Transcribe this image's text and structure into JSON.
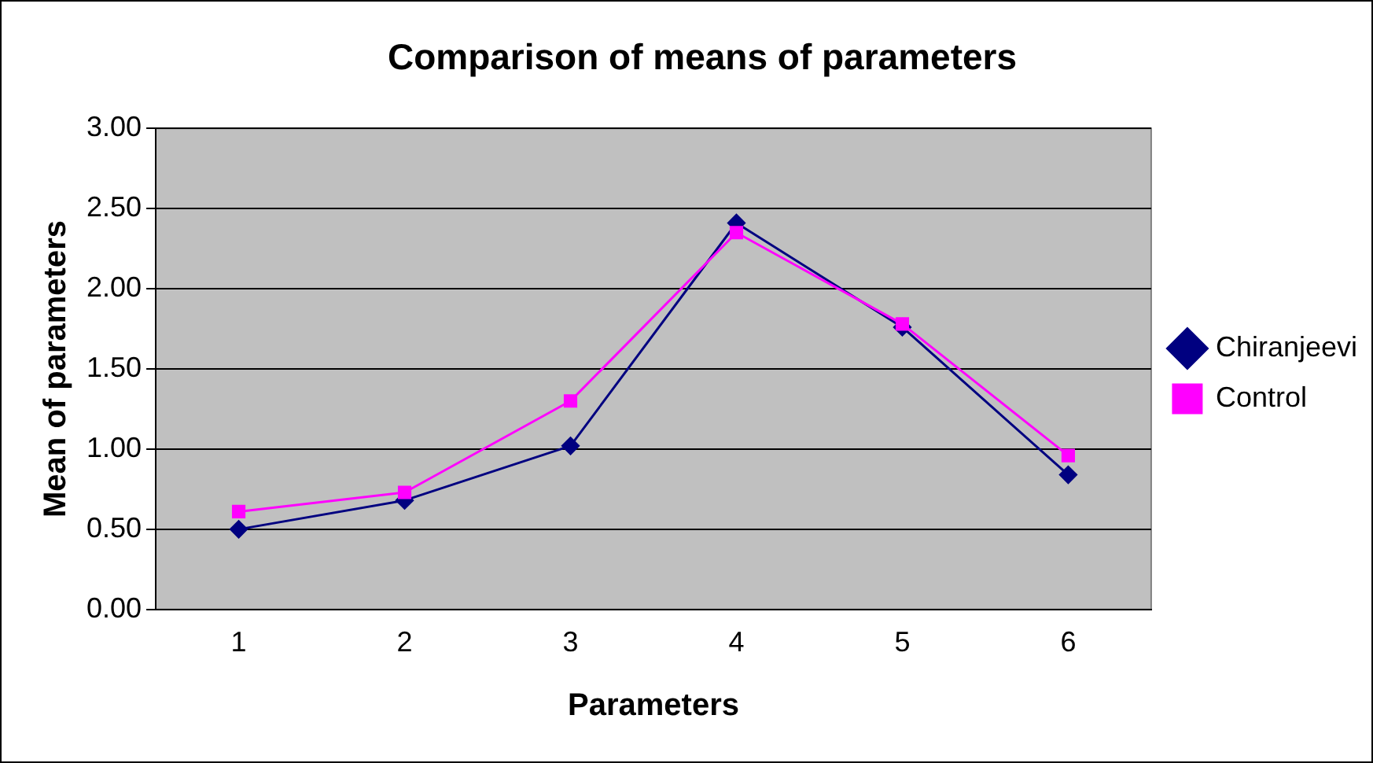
{
  "chart_data": {
    "type": "line",
    "title": "Comparison of means of parameters",
    "xlabel": "Parameters",
    "ylabel": "Mean of parameters",
    "categories": [
      "1",
      "2",
      "3",
      "4",
      "5",
      "6"
    ],
    "series": [
      {
        "name": "Chiranjeevi",
        "color": "#000080",
        "marker": "diamond",
        "values": [
          0.5,
          0.68,
          1.02,
          2.41,
          1.76,
          0.84
        ]
      },
      {
        "name": "Control",
        "color": "#ff00ff",
        "marker": "square",
        "values": [
          0.61,
          0.73,
          1.3,
          2.35,
          1.78,
          0.96
        ]
      }
    ],
    "ylim": [
      0,
      3
    ],
    "yticks": [
      {
        "value": 0,
        "label": "0.00"
      },
      {
        "value": 0.5,
        "label": "0.50"
      },
      {
        "value": 1,
        "label": "1.00"
      },
      {
        "value": 1.5,
        "label": "1.50"
      },
      {
        "value": 2,
        "label": "2.00"
      },
      {
        "value": 2.5,
        "label": "2.50"
      },
      {
        "value": 3,
        "label": "3.00"
      }
    ],
    "grid": "y",
    "legend": "right"
  }
}
